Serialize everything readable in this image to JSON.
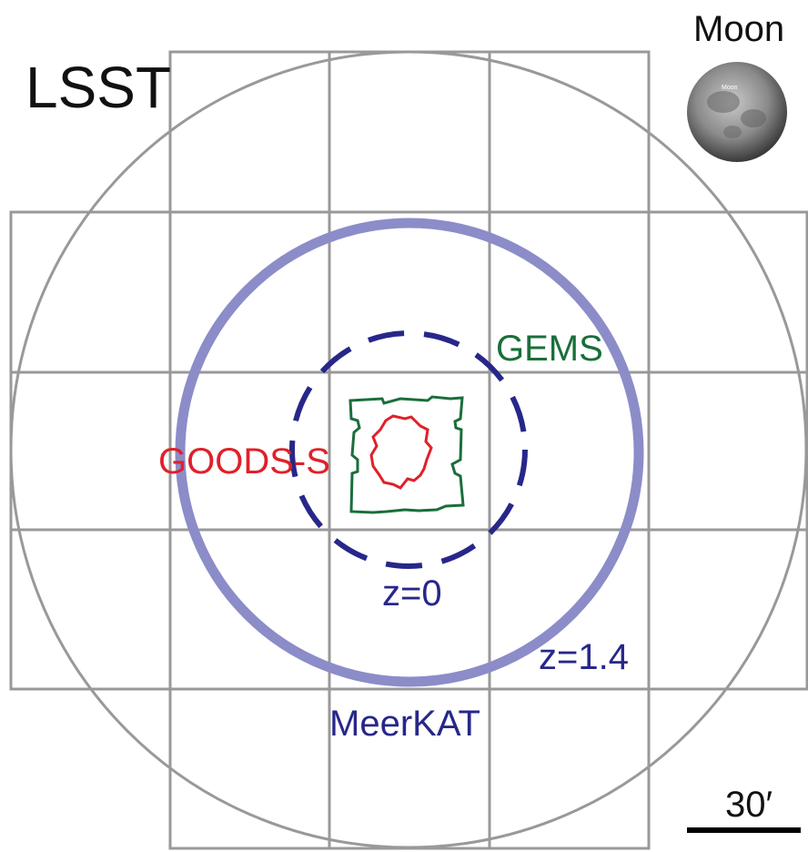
{
  "labels": {
    "lsst": "LSST",
    "moon": "Moon",
    "moon_image_label": "Moon",
    "gems": "GEMS",
    "goods_s": "GOODS-S",
    "z0": "z=0",
    "z14": "z=1.4",
    "meerkat": "MeerKAT",
    "scale": "30′"
  }
}
